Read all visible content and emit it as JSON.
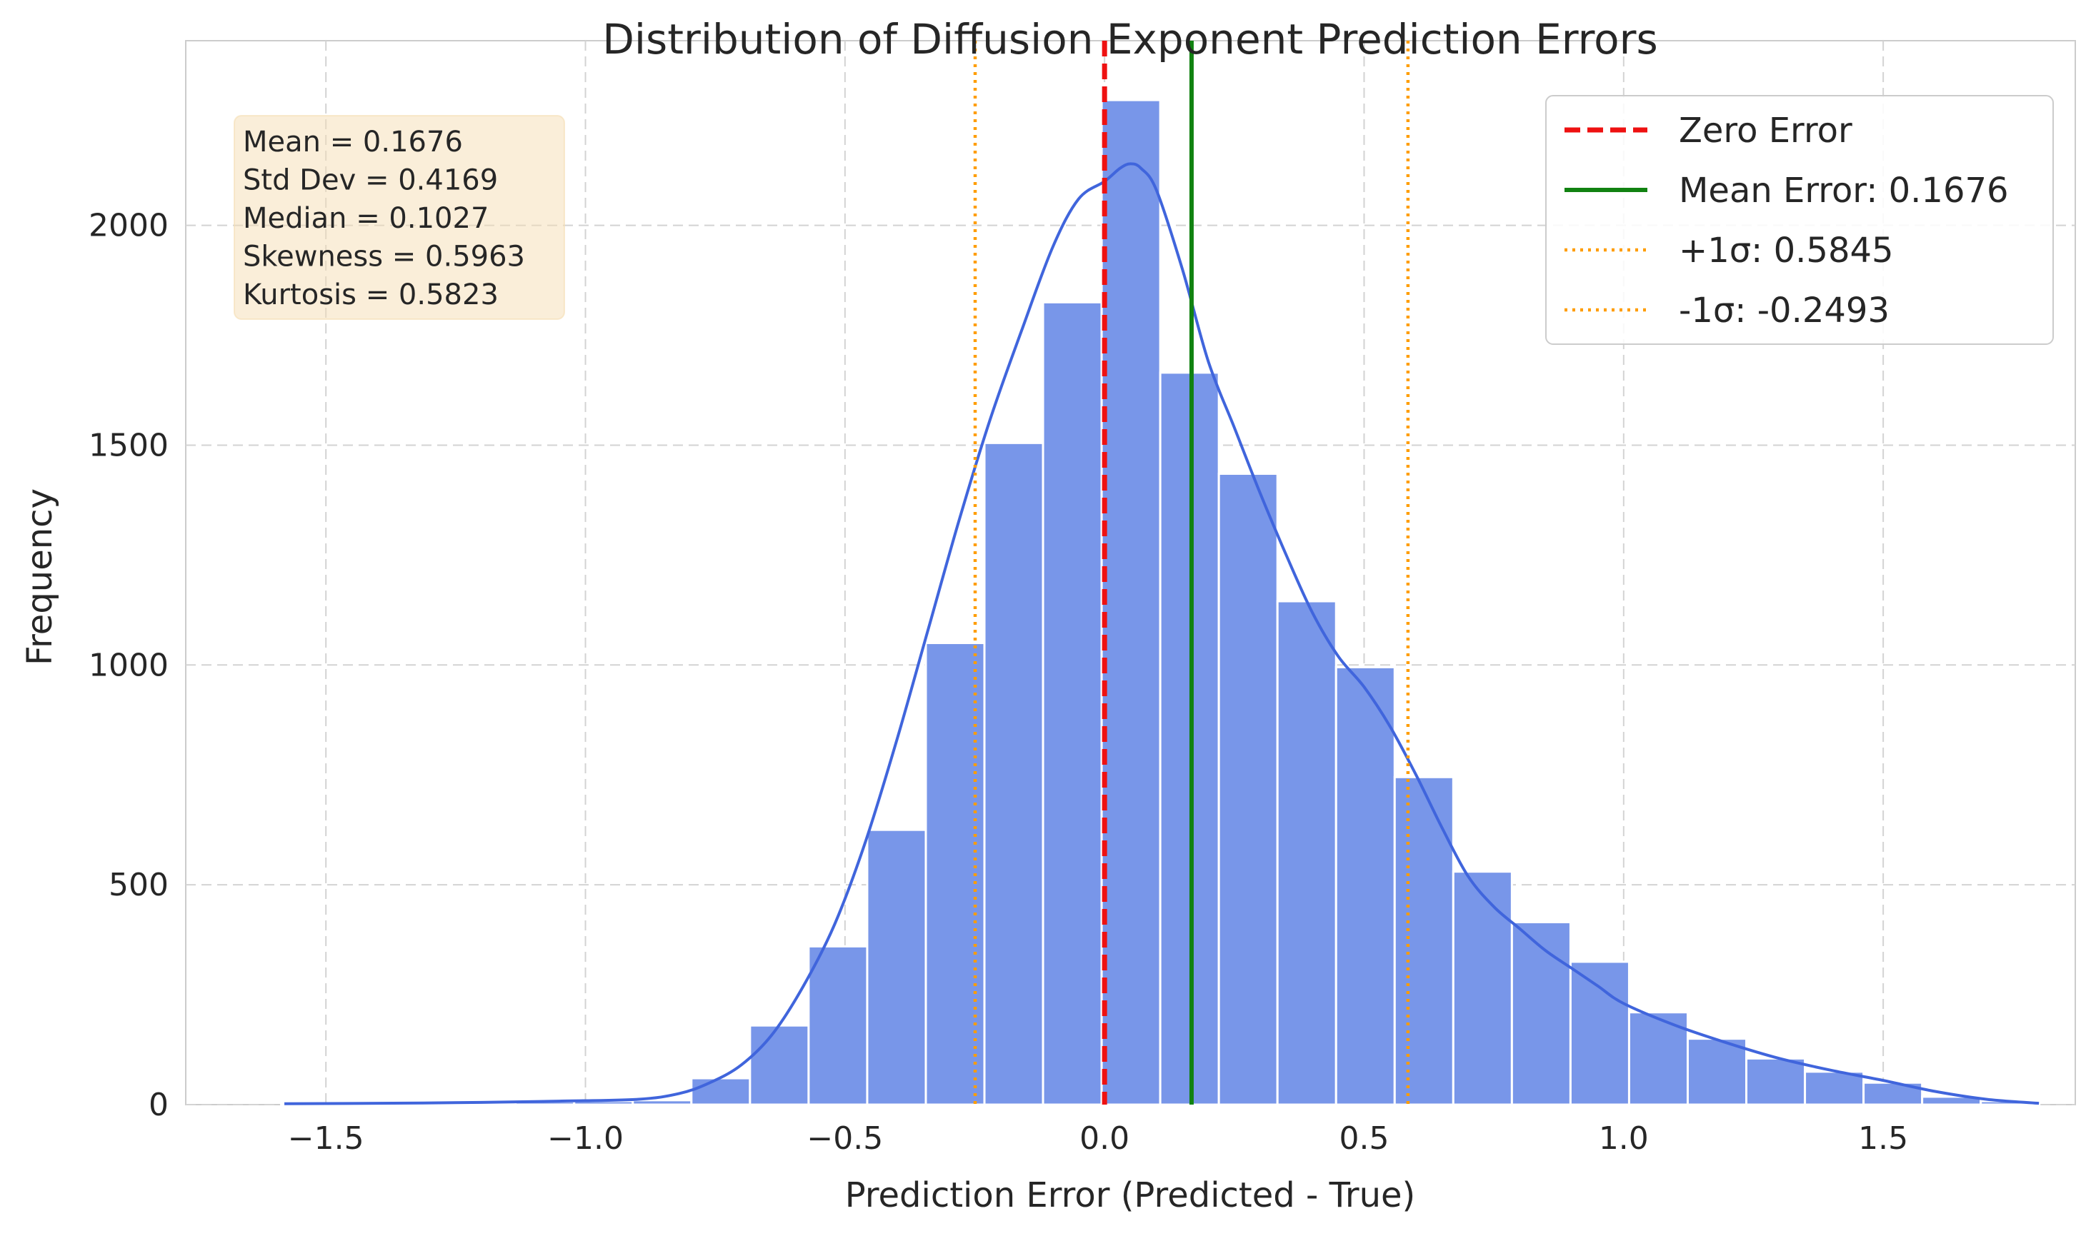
{
  "chart_data": {
    "type": "bar",
    "title": "Distribution of Diffusion Exponent Prediction Errors",
    "xlabel": "Prediction Error (Predicted - True)",
    "ylabel": "Frequency",
    "xlim": [
      -1.77,
      1.87
    ],
    "ylim": [
      0,
      2420
    ],
    "xticks": [
      -1.5,
      -1.0,
      -0.5,
      0.0,
      0.5,
      1.0,
      1.5
    ],
    "xtick_labels": [
      "−1.5",
      "−1.0",
      "−0.5",
      "0.0",
      "0.5",
      "1.0",
      "1.5"
    ],
    "yticks": [
      0,
      500,
      1000,
      1500,
      2000
    ],
    "ytick_labels": [
      "0",
      "500",
      "1000",
      "1500",
      "2000"
    ],
    "grid": true,
    "legend_position": "top-right",
    "bins": [
      {
        "left": -1.5862,
        "right": -1.4733,
        "count": 3
      },
      {
        "left": -1.4733,
        "right": -1.3604,
        "count": 2
      },
      {
        "left": -1.3604,
        "right": -1.2475,
        "count": 3
      },
      {
        "left": -1.2475,
        "right": -1.1346,
        "count": 5
      },
      {
        "left": -1.1346,
        "right": -1.0217,
        "count": 7
      },
      {
        "left": -1.0217,
        "right": -0.9088,
        "count": 8
      },
      {
        "left": -0.9088,
        "right": -0.7959,
        "count": 10
      },
      {
        "left": -0.7959,
        "right": -0.683,
        "count": 60
      },
      {
        "left": -0.683,
        "right": -0.5701,
        "count": 180
      },
      {
        "left": -0.5701,
        "right": -0.4572,
        "count": 360
      },
      {
        "left": -0.4572,
        "right": -0.3443,
        "count": 625
      },
      {
        "left": -0.3443,
        "right": -0.2314,
        "count": 1050
      },
      {
        "left": -0.2314,
        "right": -0.1185,
        "count": 1505
      },
      {
        "left": -0.1185,
        "right": -0.0056,
        "count": 1825
      },
      {
        "left": -0.0056,
        "right": 0.1073,
        "count": 2285
      },
      {
        "left": 0.1073,
        "right": 0.2202,
        "count": 1665
      },
      {
        "left": 0.2202,
        "right": 0.3331,
        "count": 1435
      },
      {
        "left": 0.3331,
        "right": 0.446,
        "count": 1145
      },
      {
        "left": 0.446,
        "right": 0.5589,
        "count": 995
      },
      {
        "left": 0.5589,
        "right": 0.6718,
        "count": 745
      },
      {
        "left": 0.6718,
        "right": 0.7847,
        "count": 530
      },
      {
        "left": 0.7847,
        "right": 0.8976,
        "count": 415
      },
      {
        "left": 0.8976,
        "right": 1.0105,
        "count": 325
      },
      {
        "left": 1.0105,
        "right": 1.1234,
        "count": 210
      },
      {
        "left": 1.1234,
        "right": 1.2363,
        "count": 150
      },
      {
        "left": 1.2363,
        "right": 1.3492,
        "count": 105
      },
      {
        "left": 1.3492,
        "right": 1.4621,
        "count": 75
      },
      {
        "left": 1.4621,
        "right": 1.575,
        "count": 50
      },
      {
        "left": 1.575,
        "right": 1.6879,
        "count": 18
      },
      {
        "left": 1.6879,
        "right": 1.8008,
        "count": 8
      }
    ],
    "kde": {
      "x": [
        -1.58,
        -1.4,
        -1.2,
        -1.05,
        -0.9,
        -0.82,
        -0.76,
        -0.7,
        -0.64,
        -0.58,
        -0.52,
        -0.46,
        -0.4,
        -0.34,
        -0.28,
        -0.22,
        -0.16,
        -0.1,
        -0.05,
        0.0,
        0.03,
        0.05,
        0.07,
        0.1,
        0.15,
        0.2,
        0.25,
        0.3,
        0.35,
        0.4,
        0.45,
        0.5,
        0.55,
        0.6,
        0.65,
        0.7,
        0.75,
        0.8,
        0.85,
        0.9,
        0.95,
        1.0,
        1.1,
        1.2,
        1.3,
        1.4,
        1.5,
        1.6,
        1.7,
        1.8
      ],
      "y": [
        2,
        3,
        5,
        8,
        12,
        25,
        50,
        90,
        160,
        270,
        410,
        600,
        830,
        1080,
        1330,
        1560,
        1760,
        1950,
        2060,
        2100,
        2130,
        2140,
        2130,
        2080,
        1900,
        1690,
        1540,
        1390,
        1250,
        1120,
        1020,
        950,
        860,
        750,
        630,
        520,
        450,
        400,
        350,
        310,
        270,
        230,
        180,
        140,
        105,
        78,
        55,
        30,
        12,
        3
      ]
    },
    "vlines": [
      {
        "name": "Zero Error",
        "x": 0.0,
        "color": "#ee1111",
        "style": "dashed"
      },
      {
        "name": "Mean Error: 0.1676",
        "x": 0.1676,
        "color": "#118211",
        "style": "solid"
      },
      {
        "name": "+1σ: 0.5845",
        "x": 0.5845,
        "color": "#ff9d00",
        "style": "dotted"
      },
      {
        "name": "-1σ: -0.2493",
        "x": -0.2493,
        "color": "#ff9d00",
        "style": "dotted"
      }
    ],
    "bar_color": "#7896e9",
    "kde_color": "#4065dc",
    "stats_box": [
      "Mean = 0.1676",
      "Std Dev = 0.4169",
      "Median = 0.1027",
      "Skewness = 0.5963",
      "Kurtosis = 0.5823"
    ]
  }
}
